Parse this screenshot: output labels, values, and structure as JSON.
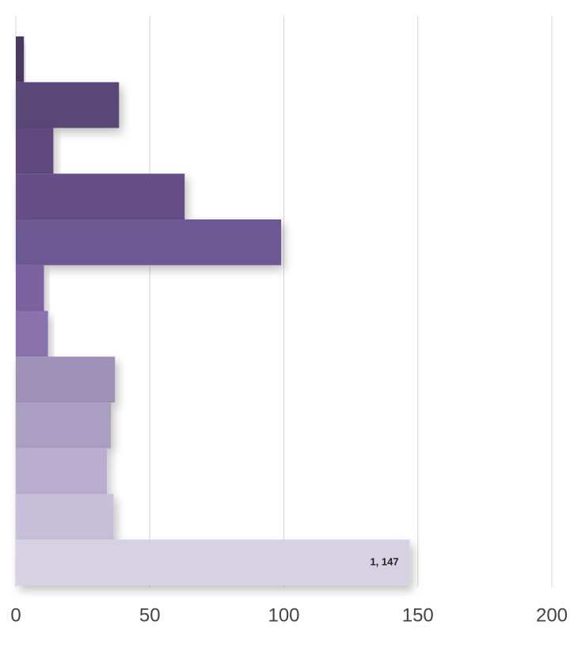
{
  "chart_data": {
    "type": "barh",
    "categories": [
      null,
      null,
      null,
      null,
      null,
      null,
      null,
      null,
      null,
      null,
      null,
      null
    ],
    "values": [
      3,
      38.5,
      14,
      63,
      99,
      10.5,
      12,
      37,
      35.5,
      34,
      36.5,
      147
    ],
    "value_labels": [
      null,
      null,
      null,
      null,
      null,
      null,
      null,
      null,
      null,
      null,
      null,
      "1, 147"
    ],
    "colors": [
      "#4a3960",
      "#5a4677",
      "#5e4a7d",
      "#654f86",
      "#6d5893",
      "#7b62a0",
      "#8a72ad",
      "#a091b8",
      "#aa9fc3",
      "#b9aecf",
      "#c7c0d9",
      "#d6d2e3"
    ],
    "xlim": [
      0,
      200
    ],
    "xticks": [
      0,
      50,
      100,
      150,
      200
    ],
    "grid": true
  }
}
